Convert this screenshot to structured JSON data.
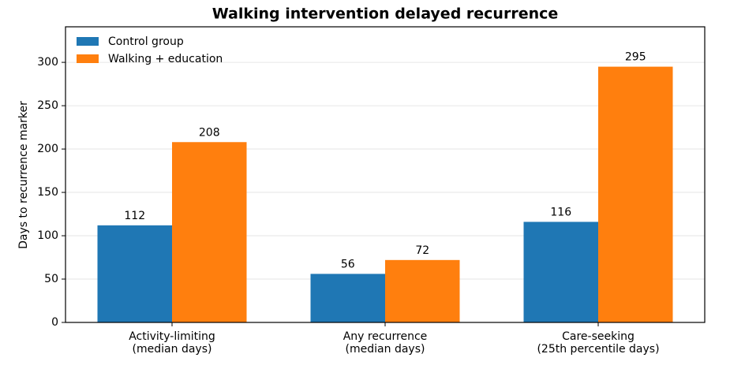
{
  "chart_data": {
    "type": "bar",
    "title": "Walking intervention delayed recurrence",
    "ylabel": "Days to recurrence marker",
    "categories": [
      [
        "Activity-limiting",
        "(median days)"
      ],
      [
        "Any recurrence",
        "(median days)"
      ],
      [
        "Care-seeking",
        "(25th percentile days)"
      ]
    ],
    "series": [
      {
        "name": "Control group",
        "color": "#1f77b4",
        "values": [
          112,
          56,
          116
        ]
      },
      {
        "name": "Walking + education",
        "color": "#ff7f0e",
        "values": [
          208,
          72,
          295
        ]
      }
    ],
    "ylim": [
      0,
      341
    ],
    "yticks": [
      0,
      50,
      100,
      150,
      200,
      250,
      300
    ],
    "grid": true,
    "legend": "upper-left"
  }
}
